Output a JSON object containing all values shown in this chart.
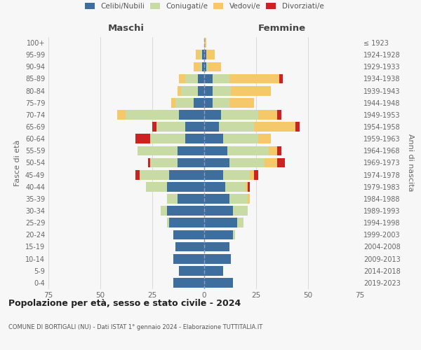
{
  "age_groups": [
    "0-4",
    "5-9",
    "10-14",
    "15-19",
    "20-24",
    "25-29",
    "30-34",
    "35-39",
    "40-44",
    "45-49",
    "50-54",
    "55-59",
    "60-64",
    "65-69",
    "70-74",
    "75-79",
    "80-84",
    "85-89",
    "90-94",
    "95-99",
    "100+"
  ],
  "birth_years": [
    "2019-2023",
    "2014-2018",
    "2009-2013",
    "2004-2008",
    "1999-2003",
    "1994-1998",
    "1989-1993",
    "1984-1988",
    "1979-1983",
    "1974-1978",
    "1969-1973",
    "1964-1968",
    "1959-1963",
    "1954-1958",
    "1949-1953",
    "1944-1948",
    "1939-1943",
    "1934-1938",
    "1929-1933",
    "1924-1928",
    "≤ 1923"
  ],
  "colors": {
    "celibi": "#3d6e9e",
    "coniugati": "#c8dba4",
    "vedovi": "#f5c96a",
    "divorziati": "#cc2222"
  },
  "legend_labels": [
    "Celibi/Nubili",
    "Coniugati/e",
    "Vedovi/e",
    "Divorziati/e"
  ],
  "title1": "Popolazione per età, sesso e stato civile - 2024",
  "title2": "COMUNE DI BORTIGALI (NU) - Dati ISTAT 1° gennaio 2024 - Elaborazione TUTTITALIA.IT",
  "ylabel_left": "Fasce di età",
  "ylabel_right": "Anni di nascita",
  "xlabel_left": "Maschi",
  "xlabel_right": "Femmine",
  "xlim": 75,
  "males": {
    "celibi": [
      15,
      12,
      15,
      14,
      15,
      17,
      18,
      13,
      18,
      17,
      13,
      13,
      9,
      9,
      12,
      5,
      3,
      3,
      1,
      1,
      0
    ],
    "coniugati": [
      0,
      0,
      0,
      0,
      0,
      1,
      3,
      5,
      10,
      14,
      13,
      19,
      17,
      14,
      26,
      9,
      8,
      6,
      1,
      1,
      0
    ],
    "vedovi": [
      0,
      0,
      0,
      0,
      0,
      0,
      0,
      0,
      0,
      0,
      0,
      0,
      0,
      0,
      4,
      2,
      2,
      3,
      3,
      2,
      0
    ],
    "divorziati": [
      0,
      0,
      0,
      0,
      0,
      0,
      0,
      0,
      0,
      2,
      1,
      0,
      7,
      2,
      0,
      0,
      0,
      0,
      0,
      0,
      0
    ]
  },
  "females": {
    "nubili": [
      14,
      9,
      13,
      12,
      14,
      16,
      14,
      12,
      10,
      9,
      12,
      11,
      9,
      7,
      8,
      4,
      4,
      4,
      1,
      1,
      0
    ],
    "coniugate": [
      0,
      0,
      0,
      0,
      1,
      3,
      7,
      9,
      10,
      13,
      17,
      20,
      17,
      17,
      18,
      8,
      9,
      8,
      1,
      0,
      0
    ],
    "vedove": [
      0,
      0,
      0,
      0,
      0,
      0,
      0,
      1,
      1,
      2,
      6,
      4,
      6,
      20,
      9,
      12,
      19,
      24,
      6,
      4,
      1
    ],
    "divorziate": [
      0,
      0,
      0,
      0,
      0,
      0,
      0,
      0,
      1,
      2,
      4,
      2,
      0,
      2,
      2,
      0,
      0,
      2,
      0,
      0,
      0
    ]
  },
  "background_color": "#f7f7f7",
  "grid_color": "#cccccc"
}
